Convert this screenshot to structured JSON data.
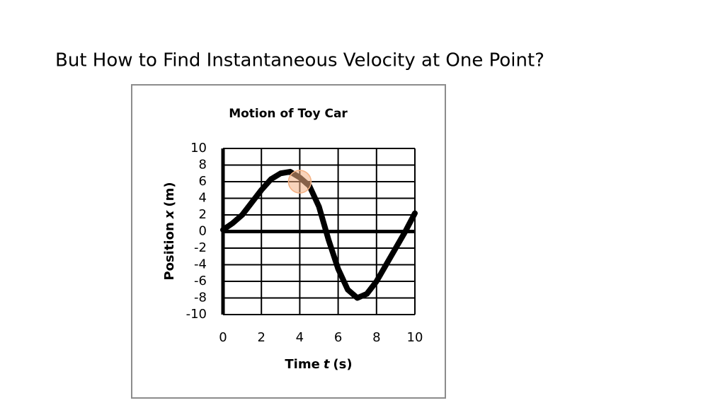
{
  "slide": {
    "title": "But How to Find Instantaneous Velocity at One Point?"
  },
  "chart_data": {
    "type": "line",
    "title": "Motion of Toy Car",
    "xlabel_parts": [
      "Time",
      "t",
      "(s)"
    ],
    "ylabel_parts": [
      "Position",
      "x",
      "(m)"
    ],
    "x": [
      0,
      0.5,
      1,
      1.5,
      2,
      2.5,
      3,
      3.5,
      4,
      4.5,
      5,
      5.5,
      6,
      6.5,
      7,
      7.5,
      8,
      8.5,
      9,
      9.5,
      10
    ],
    "values": [
      0.2,
      1,
      2,
      3.5,
      5,
      6.3,
      7,
      7.2,
      6.5,
      5.5,
      3,
      -1,
      -4.5,
      -7,
      -8,
      -7.5,
      -6,
      -4,
      -2,
      0,
      2.2
    ],
    "color": "#000000",
    "xlim": [
      0,
      10
    ],
    "xticks": [
      0,
      2,
      4,
      6,
      8,
      10
    ],
    "ylim": [
      -10,
      10
    ],
    "yticks": [
      10,
      8,
      6,
      4,
      2,
      0,
      -2,
      -4,
      -6,
      -8,
      -10
    ],
    "grid": true,
    "highlight_point": {
      "x": 4,
      "y": 6,
      "color": "#f4b183"
    }
  }
}
